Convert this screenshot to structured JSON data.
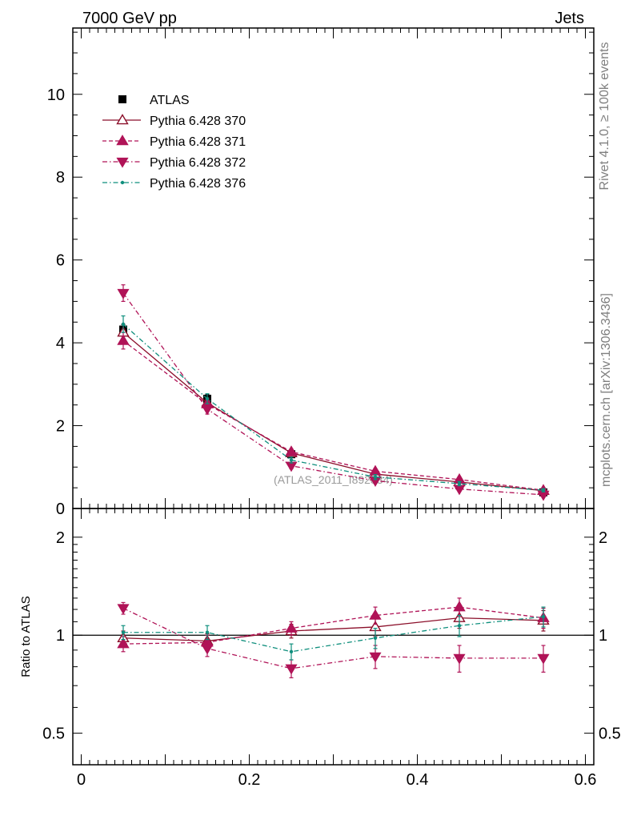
{
  "header": {
    "left": "7000 GeV pp",
    "right": "Jets"
  },
  "side_labels": {
    "rivet": "Rivet 4.1.0, ≥ 100k events",
    "mcplots": "mcplots.cern.ch [arXiv:1306.3436]"
  },
  "chart_data": [
    {
      "type": "line",
      "panel": "main",
      "title": "",
      "xlabel": "",
      "ylabel": "",
      "xlim": [
        -0.01,
        0.61
      ],
      "ylim": [
        0,
        11.6
      ],
      "x_ticks": [
        0,
        0.2,
        0.4,
        0.6
      ],
      "x_tick_labels": [
        "0",
        "0.2",
        "0.4",
        "0.6"
      ],
      "y_ticks": [
        0,
        2,
        4,
        6,
        8,
        10
      ],
      "y_tick_labels": [
        "0",
        "2",
        "4",
        "6",
        "8",
        "10"
      ],
      "watermark": "(ATLAS_2011_I892834)",
      "legend_position": "top-left",
      "x": [
        0.05,
        0.15,
        0.25,
        0.35,
        0.45,
        0.55
      ],
      "series": [
        {
          "name": "ATLAS",
          "color": "#000000",
          "marker": "square",
          "line": "none",
          "values": [
            4.32,
            2.65,
            1.31,
            0.78,
            0.56,
            0.39
          ],
          "errors": [
            0.12,
            0.1,
            0.06,
            0.05,
            0.04,
            0.03
          ]
        },
        {
          "name": "Pythia 6.428 370",
          "color": "#8b0f2a",
          "marker": "open-triangle-up",
          "line": "solid",
          "values": [
            4.25,
            2.55,
            1.34,
            0.83,
            0.64,
            0.43
          ],
          "errors": [
            0.2,
            0.12,
            0.07,
            0.06,
            0.05,
            0.04
          ]
        },
        {
          "name": "Pythia 6.428 371",
          "color": "#b01357",
          "marker": "triangle-up",
          "line": "dashed",
          "values": [
            4.05,
            2.52,
            1.37,
            0.9,
            0.7,
            0.44
          ],
          "errors": [
            0.2,
            0.12,
            0.07,
            0.06,
            0.05,
            0.04
          ]
        },
        {
          "name": "Pythia 6.428 372",
          "color": "#b01357",
          "marker": "triangle-down",
          "line": "dashdot",
          "values": [
            5.2,
            2.4,
            1.03,
            0.67,
            0.47,
            0.33
          ],
          "errors": [
            0.2,
            0.12,
            0.07,
            0.06,
            0.05,
            0.04
          ]
        },
        {
          "name": "Pythia 6.428 376",
          "color": "#0f8f7d",
          "marker": "dot",
          "line": "dashdot",
          "values": [
            4.45,
            2.65,
            1.17,
            0.76,
            0.6,
            0.44
          ],
          "errors": [
            0.2,
            0.12,
            0.07,
            0.06,
            0.05,
            0.04
          ]
        }
      ]
    },
    {
      "type": "line",
      "panel": "ratio",
      "ylabel": "Ratio to ATLAS",
      "xlim": [
        -0.01,
        0.61
      ],
      "ylim": [
        0.4,
        2.45
      ],
      "yscale": "log",
      "y_ticks": [
        0.5,
        1,
        2
      ],
      "y_tick_labels": [
        "0.5",
        "1",
        "2"
      ],
      "reference_line": 1,
      "x": [
        0.05,
        0.15,
        0.25,
        0.35,
        0.45,
        0.55
      ],
      "series": [
        {
          "name": "Pythia 6.428 370",
          "color": "#8b0f2a",
          "marker": "open-triangle-up",
          "line": "solid",
          "values": [
            0.98,
            0.96,
            1.03,
            1.06,
            1.13,
            1.11
          ],
          "errors": [
            0.05,
            0.05,
            0.05,
            0.07,
            0.08,
            0.08
          ]
        },
        {
          "name": "Pythia 6.428 371",
          "color": "#b01357",
          "marker": "triangle-up",
          "line": "dashed",
          "values": [
            0.94,
            0.95,
            1.05,
            1.15,
            1.22,
            1.13
          ],
          "errors": [
            0.05,
            0.05,
            0.05,
            0.07,
            0.08,
            0.08
          ]
        },
        {
          "name": "Pythia 6.428 372",
          "color": "#b01357",
          "marker": "triangle-down",
          "line": "dashdot",
          "values": [
            1.21,
            0.91,
            0.79,
            0.86,
            0.85,
            0.85
          ],
          "errors": [
            0.05,
            0.05,
            0.05,
            0.07,
            0.08,
            0.08
          ]
        },
        {
          "name": "Pythia 6.428 376",
          "color": "#0f8f7d",
          "marker": "dot",
          "line": "dashdot",
          "values": [
            1.02,
            1.02,
            0.89,
            0.98,
            1.07,
            1.14
          ],
          "errors": [
            0.05,
            0.05,
            0.05,
            0.07,
            0.08,
            0.08
          ]
        }
      ]
    }
  ]
}
